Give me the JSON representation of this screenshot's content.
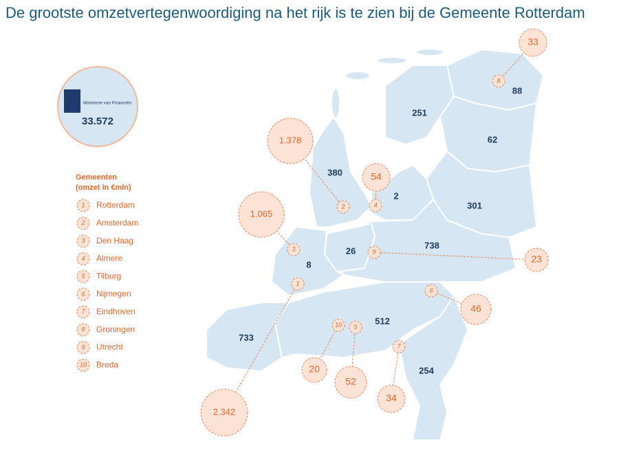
{
  "title": "De grootste omzetvertegenwoordiging na het rijk is te zien bij de  Gemeente Rotterdam",
  "ministry": {
    "label": "Ministerie van Financiën",
    "total": "33.572"
  },
  "legend": {
    "title": "Gemeenten",
    "subtitle": "(omzet in €mln)",
    "items": [
      {
        "number": "1",
        "name": "Rotterdam"
      },
      {
        "number": "2",
        "name": "Amsterdam"
      },
      {
        "number": "3",
        "name": "Den Haag"
      },
      {
        "number": "4",
        "name": "Almere"
      },
      {
        "number": "5",
        "name": "Tilburg"
      },
      {
        "number": "6",
        "name": "Nijmegen"
      },
      {
        "number": "7",
        "name": "Eindhoven"
      },
      {
        "number": "8",
        "name": "Groningen"
      },
      {
        "number": "9",
        "name": "Utrecht"
      },
      {
        "number": "10",
        "name": "Breda"
      }
    ]
  },
  "provinces": [
    "251",
    "88",
    "62",
    "380",
    "2",
    "301",
    "738",
    "26",
    "8",
    "512",
    "733",
    "254"
  ],
  "municipalities": [
    "2.342",
    "1.378",
    "1.065",
    "54",
    "52",
    "46",
    "34",
    "33",
    "23",
    "20"
  ]
}
